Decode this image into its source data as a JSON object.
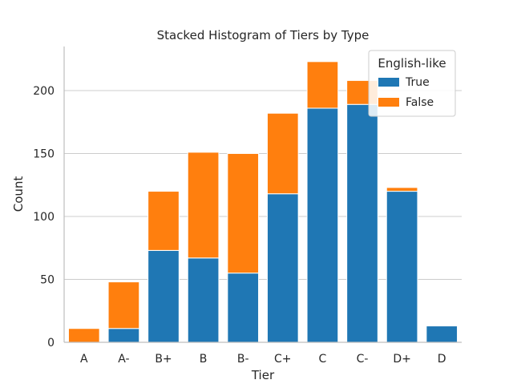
{
  "chart_data": {
    "type": "bar",
    "stacked": true,
    "title": "Stacked Histogram of Tiers by Type",
    "xlabel": "Tier",
    "ylabel": "Count",
    "ylim": [
      0,
      235
    ],
    "yticks": [
      0,
      50,
      100,
      150,
      200
    ],
    "grid": "horizontal",
    "categories": [
      "A",
      "A-",
      "B+",
      "B",
      "B-",
      "C+",
      "C",
      "C-",
      "D+",
      "D"
    ],
    "series": [
      {
        "name": "True",
        "color": "#1f77b4",
        "values": [
          0,
          11,
          73,
          67,
          55,
          118,
          186,
          189,
          120,
          13
        ]
      },
      {
        "name": "False",
        "color": "#ff7f0e",
        "values": [
          11,
          37,
          47,
          84,
          95,
          64,
          37,
          19,
          3,
          0
        ]
      }
    ],
    "legend": {
      "title": "English-like",
      "placement": "top-right"
    }
  }
}
